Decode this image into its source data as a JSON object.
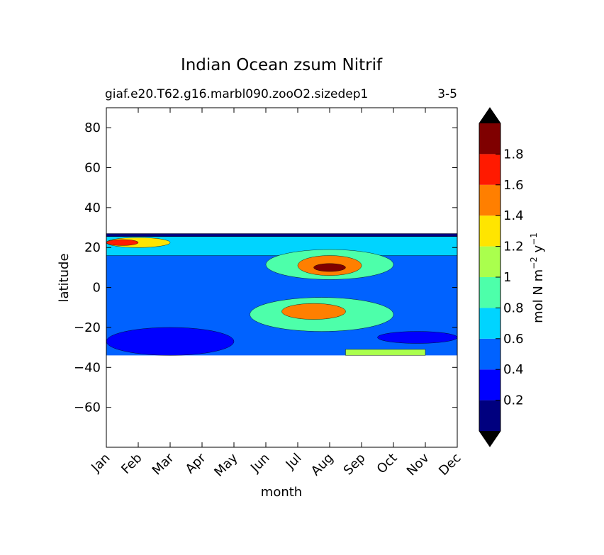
{
  "chart_data": {
    "type": "contourf",
    "title": "Indian Ocean zsum Nitrif",
    "subtitle_left": "giaf.e20.T62.g16.marbl090.zooO2.sizedep1",
    "subtitle_right": "3-5",
    "xlabel": "month",
    "ylabel": "latitude",
    "x_ticks": [
      "Jan",
      "Feb",
      "Mar",
      "Apr",
      "May",
      "Jun",
      "Jul",
      "Aug",
      "Sep",
      "Oct",
      "Nov",
      "Dec"
    ],
    "ylim": [
      -80,
      90
    ],
    "y_ticks": [
      80,
      60,
      40,
      20,
      0,
      -20,
      -40,
      -60
    ],
    "y_tick_labels": [
      "80",
      "60",
      "40",
      "20",
      "0",
      "−20",
      "−40",
      "−60"
    ],
    "data_lat_range": [
      -34,
      27
    ],
    "colormap": "jet",
    "colorbar": {
      "label_main": "mol N m",
      "label_exp1": "−2",
      "label_mid": " y",
      "label_exp2": "−1",
      "levels": [
        0.0,
        0.2,
        0.4,
        0.6,
        0.8,
        1.0,
        1.2,
        1.4,
        1.6,
        1.8,
        2.0
      ],
      "tick_values": [
        0.2,
        0.4,
        0.6,
        0.8,
        1.0,
        1.2,
        1.4,
        1.6,
        1.8
      ],
      "tick_labels": [
        "0.2",
        "0.4",
        "0.6",
        "0.8",
        "1",
        "1.2",
        "1.4",
        "1.6",
        "1.8"
      ],
      "colors": [
        "#00007f",
        "#0000ff",
        "#0062ff",
        "#00d4ff",
        "#4dffaa",
        "#aaff4d",
        "#ffe500",
        "#ff7f00",
        "#ff1a00",
        "#7f0000"
      ],
      "extend": "both",
      "under_color": "#000000",
      "over_color": "#000000"
    },
    "fields": [
      {
        "name": "background",
        "level": 0.5,
        "lat_top": 27,
        "lat_bottom": -34,
        "month_start": 0,
        "month_end": 11
      },
      {
        "name": "north-edge-band",
        "level": 0.1,
        "lat_top": 27,
        "lat_bottom": 25.5,
        "month_start": 0,
        "month_end": 11
      },
      {
        "name": "north-coastal",
        "level": 0.7,
        "lat_top": 25.5,
        "lat_bottom": 16,
        "month_start": 0,
        "month_end": 11
      },
      {
        "name": "north-coastal-high",
        "level": 1.3,
        "lat_top": 25,
        "lat_bottom": 20,
        "month_start": 0,
        "month_end": 2
      },
      {
        "name": "north-coastal-peak",
        "level": 1.7,
        "lat_top": 24,
        "lat_bottom": 21,
        "month_start": 0,
        "month_end": 1
      },
      {
        "name": "summer-north",
        "level": 0.9,
        "lat_top": 19,
        "lat_bottom": 4,
        "month_start": 5,
        "month_end": 9
      },
      {
        "name": "summer-north-high",
        "level": 1.5,
        "lat_top": 16,
        "lat_bottom": 6,
        "month_start": 6,
        "month_end": 8
      },
      {
        "name": "summer-north-peak",
        "level": 1.9,
        "lat_top": 12,
        "lat_bottom": 8,
        "month_start": 6.5,
        "month_end": 7.5
      },
      {
        "name": "summer-south",
        "level": 0.9,
        "lat_top": -5,
        "lat_bottom": -22,
        "month_start": 4.5,
        "month_end": 9
      },
      {
        "name": "summer-south-high",
        "level": 1.5,
        "lat_top": -8,
        "lat_bottom": -16,
        "month_start": 5.5,
        "month_end": 7.5
      },
      {
        "name": "south-low",
        "level": 0.3,
        "lat_top": -20,
        "lat_bottom": -34,
        "month_start": 0,
        "month_end": 4
      },
      {
        "name": "south-low-dec",
        "level": 0.3,
        "lat_top": -22,
        "lat_bottom": -28,
        "month_start": 8.5,
        "month_end": 11
      },
      {
        "name": "south-edge-sep",
        "level": 1.1,
        "lat_top": -31,
        "lat_bottom": -34,
        "month_start": 7.5,
        "month_end": 10
      }
    ]
  }
}
